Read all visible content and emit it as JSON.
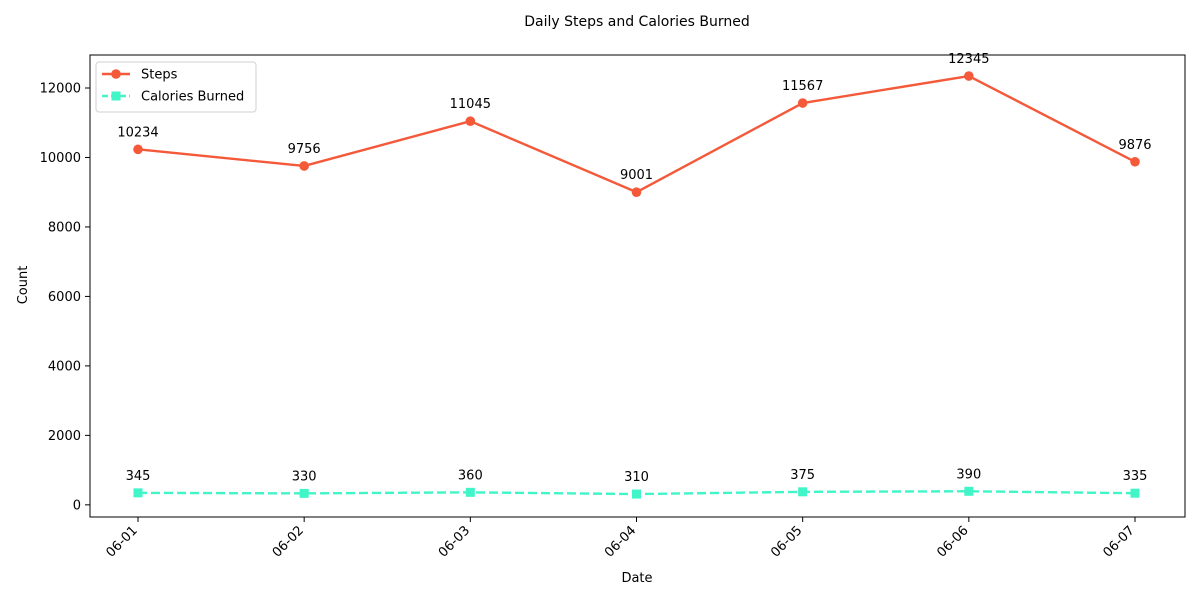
{
  "chart_data": {
    "type": "line",
    "title": "Daily Steps and Calories Burned",
    "xlabel": "Date",
    "ylabel": "Count",
    "categories": [
      "06-01",
      "06-02",
      "06-03",
      "06-04",
      "06-05",
      "06-06",
      "06-07"
    ],
    "ylim": [
      -350,
      12950
    ],
    "yticks": [
      0,
      2000,
      4000,
      6000,
      8000,
      10000,
      12000
    ],
    "grid": false,
    "legend_position": "upper-left",
    "series": [
      {
        "name": "Steps",
        "values": [
          10234,
          9756,
          11045,
          9001,
          11567,
          12345,
          9876
        ],
        "color": "#F4593A",
        "line_style": "solid",
        "marker": "circle"
      },
      {
        "name": "Calories Burned",
        "values": [
          345,
          330,
          360,
          310,
          375,
          390,
          335
        ],
        "color": "#40F5C8",
        "line_style": "dashed",
        "marker": "square"
      }
    ]
  }
}
